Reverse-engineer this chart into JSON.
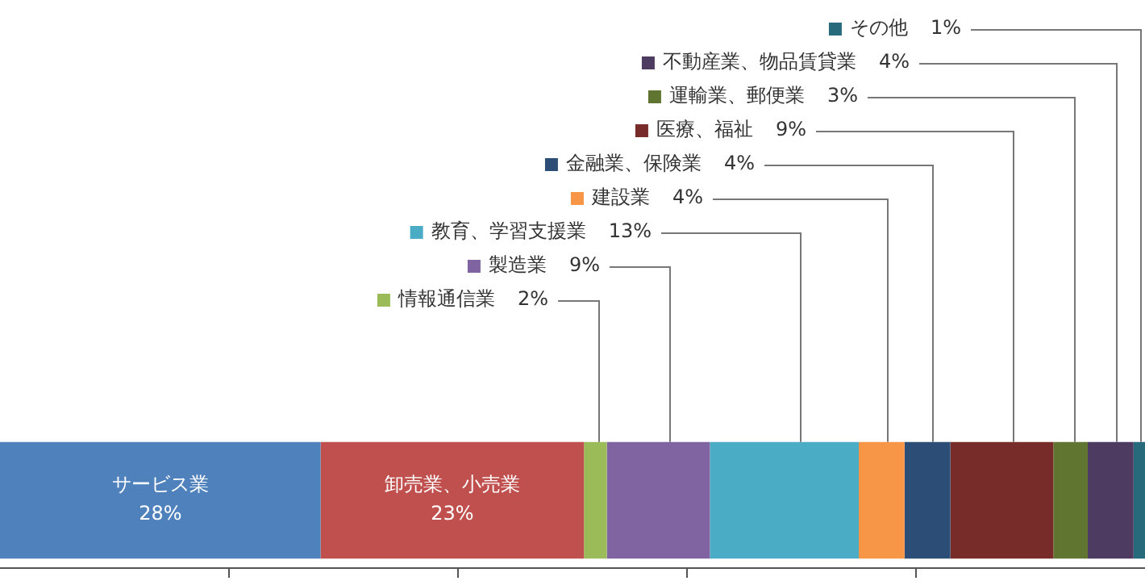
{
  "chart_data": {
    "type": "bar",
    "orientation": "horizontal",
    "stacked": true,
    "categories": [
      null
    ],
    "xlim": [
      0,
      100
    ],
    "xticks": [
      {
        "value": 20,
        "label": null
      },
      {
        "value": 40,
        "label": null
      },
      {
        "value": 60,
        "label": null
      },
      {
        "value": 80,
        "label": null
      }
    ],
    "tick_labels": false,
    "legend": "top",
    "series": [
      {
        "name": "サービス業",
        "color": "#4f81bd",
        "values": [
          28
        ],
        "value_labels": [
          "28%"
        ]
      },
      {
        "name": "卸売業、小売業",
        "color": "#c0504d",
        "values": [
          23
        ],
        "value_labels": [
          "23%"
        ]
      },
      {
        "name": "情報通信業",
        "color": "#9bbb59",
        "values": [
          2
        ],
        "value_labels": [
          "2%"
        ]
      },
      {
        "name": "製造業",
        "color": "#8064a2",
        "values": [
          9
        ],
        "value_labels": [
          "9%"
        ]
      },
      {
        "name": "教育、学習支援業",
        "color": "#4bacc6",
        "values": [
          13
        ],
        "value_labels": [
          "13%"
        ]
      },
      {
        "name": "建設業",
        "color": "#f79646",
        "values": [
          4
        ],
        "value_labels": [
          "4%"
        ]
      },
      {
        "name": "金融業、保険業",
        "color": "#2c4d75",
        "values": [
          4
        ],
        "value_labels": [
          "4%"
        ]
      },
      {
        "name": "医療、福祉",
        "color": "#772c2a",
        "values": [
          9
        ],
        "value_labels": [
          "9%"
        ]
      },
      {
        "name": "運輸業、郵便業",
        "color": "#5f7530",
        "values": [
          3
        ],
        "value_labels": [
          "3%"
        ]
      },
      {
        "name": "不動産業、物品賃貸業",
        "color": "#4d3b62",
        "values": [
          4
        ],
        "value_labels": [
          "4%"
        ]
      },
      {
        "name": "その他",
        "color": "#276a7c",
        "values": [
          1
        ],
        "value_labels": [
          "1%"
        ]
      }
    ]
  }
}
